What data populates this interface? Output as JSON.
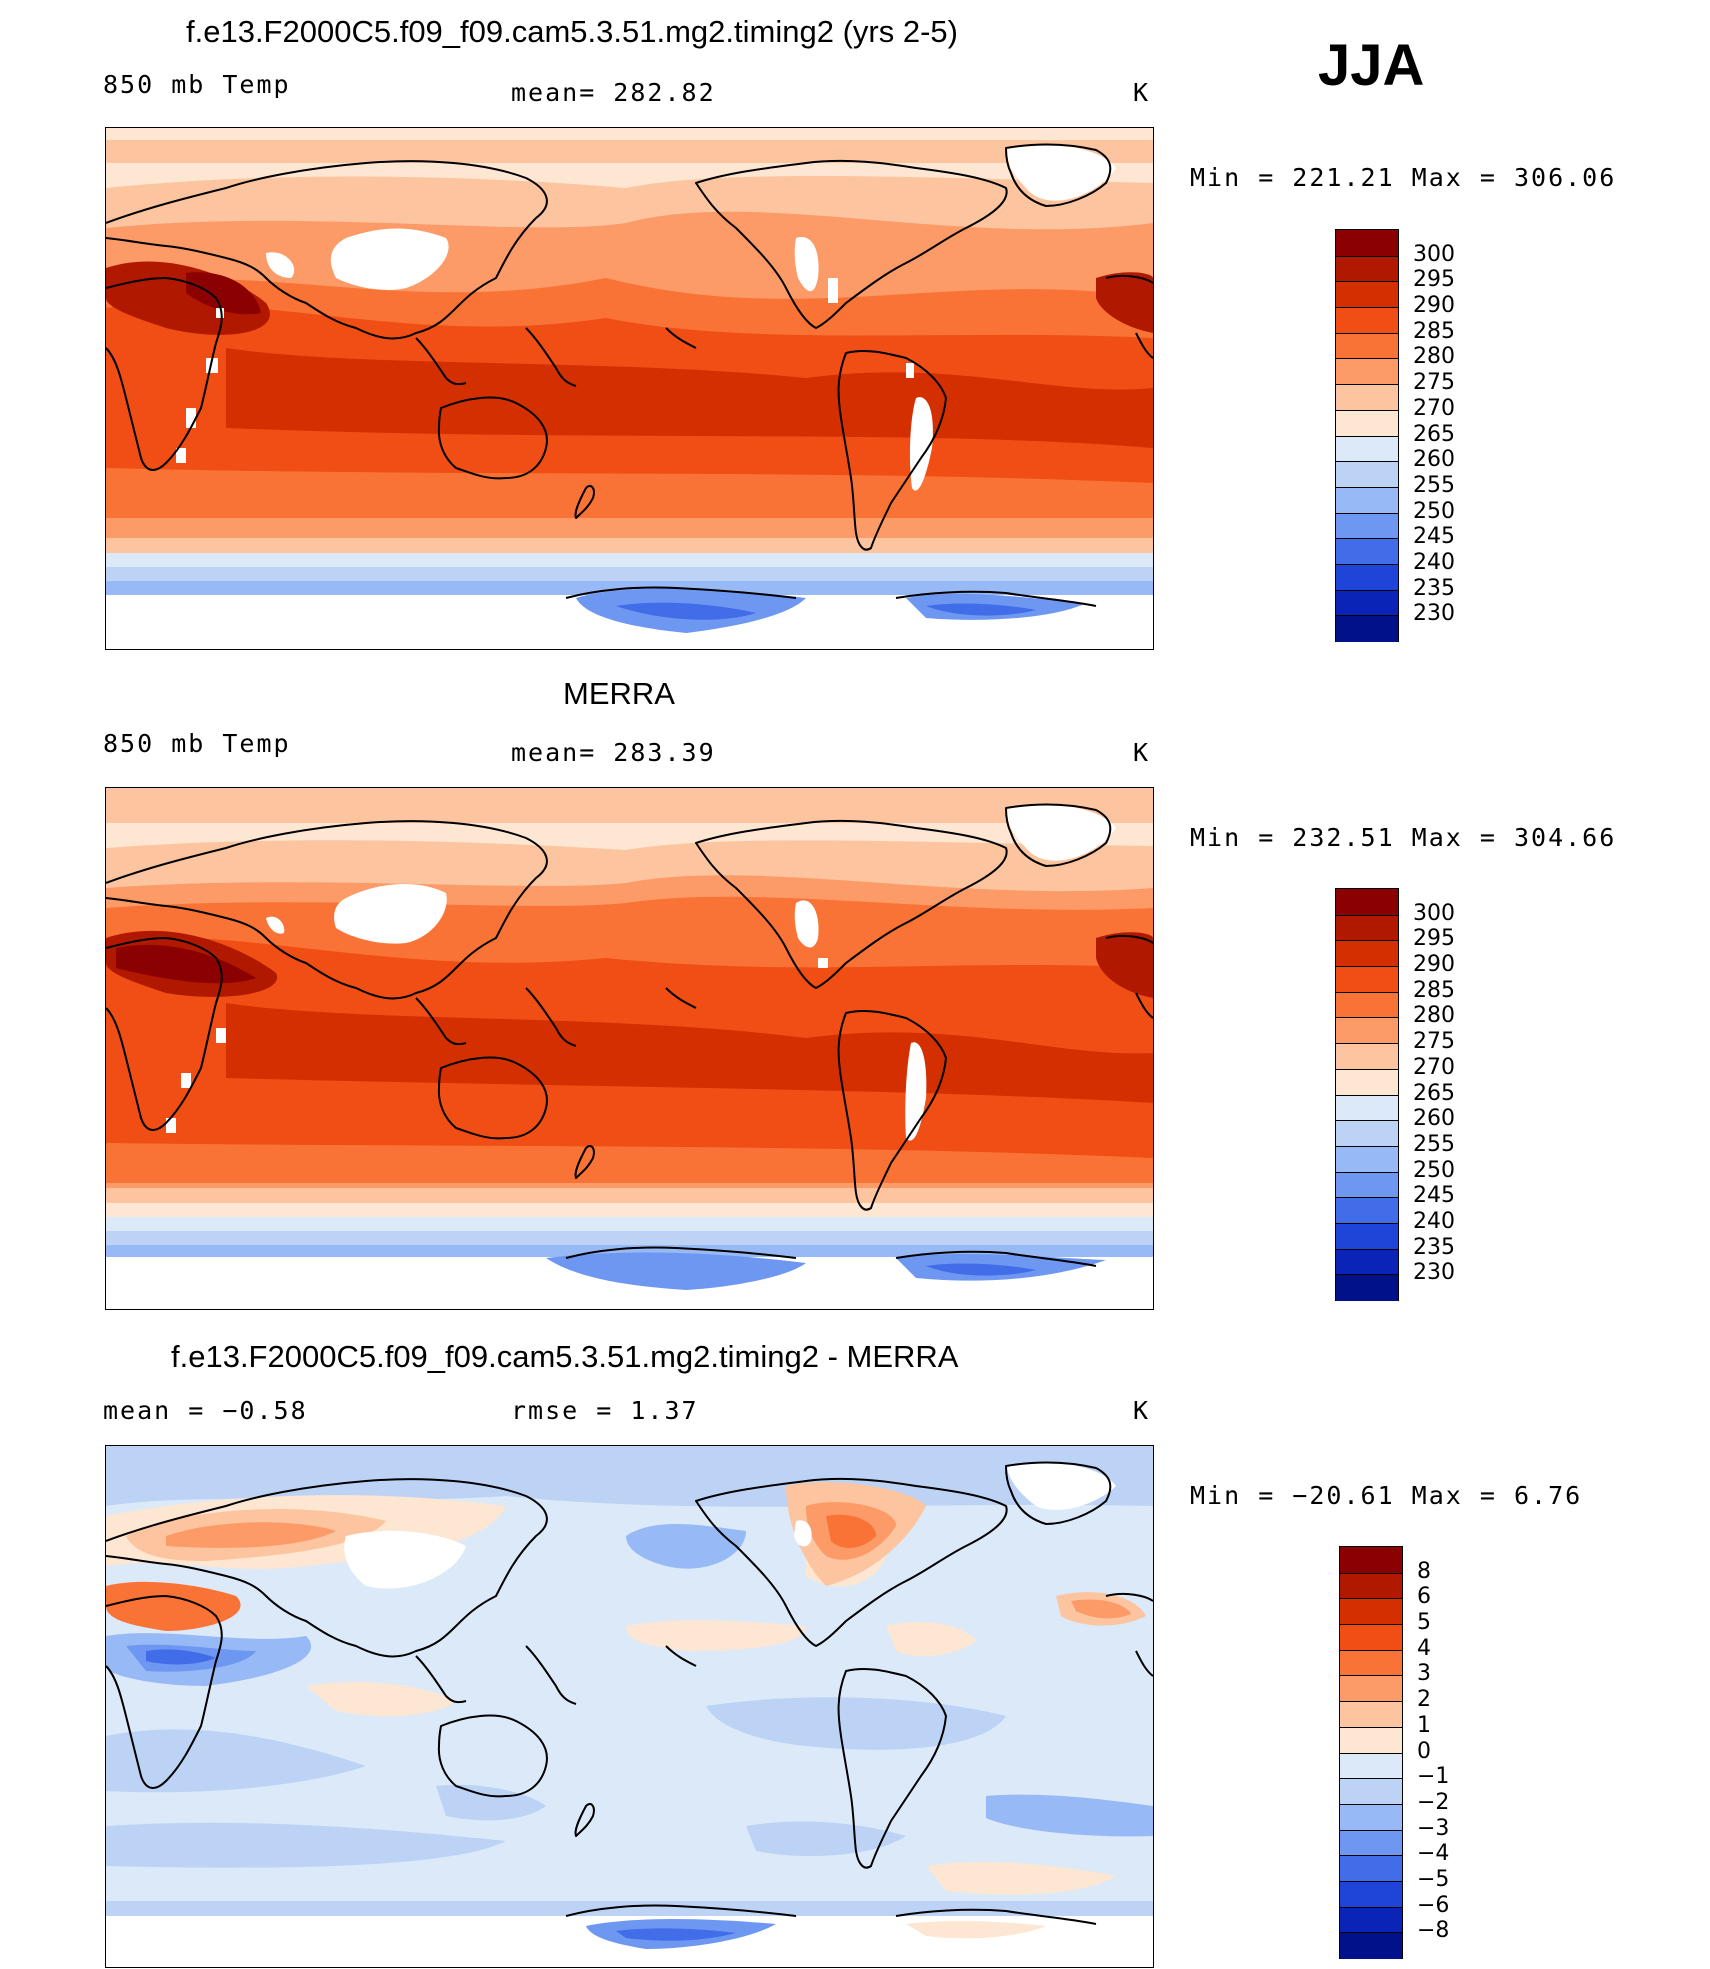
{
  "season": "JJA",
  "panels": [
    {
      "title": "f.e13.F2000C5.f09_f09.cam5.3.51.mg2.timing2 (yrs 2-5)",
      "left_label": "850 mb Temp",
      "center_label": "mean= 282.82",
      "units": "K",
      "minmax": "Min = 221.21 Max = 306.06",
      "colorbar": [
        "300",
        "295",
        "290",
        "285",
        "280",
        "275",
        "270",
        "265",
        "260",
        "255",
        "250",
        "245",
        "240",
        "235",
        "230"
      ]
    },
    {
      "title": "MERRA",
      "left_label": "850 mb Temp",
      "center_label": "mean= 283.39",
      "units": "K",
      "minmax": "Min = 232.51 Max = 304.66",
      "colorbar": [
        "300",
        "295",
        "290",
        "285",
        "280",
        "275",
        "270",
        "265",
        "260",
        "255",
        "250",
        "245",
        "240",
        "235",
        "230"
      ]
    },
    {
      "title": "f.e13.F2000C5.f09_f09.cam5.3.51.mg2.timing2 - MERRA",
      "left_label": "mean =   −0.58",
      "center_label": "rmse =    1.37",
      "units": "K",
      "minmax": "Min = −20.61 Max =    6.76",
      "colorbar": [
        "8",
        "6",
        "5",
        "4",
        "3",
        "2",
        "1",
        "0",
        "−1",
        "−2",
        "−3",
        "−4",
        "−5",
        "−6",
        "−8"
      ]
    }
  ],
  "colors": {
    "temp_scale": [
      "#8b0000",
      "#b01800",
      "#d32f00",
      "#f04e14",
      "#f97336",
      "#fc9a68",
      "#fdc4a0",
      "#fde6d2",
      "#dbe9f9",
      "#bcd3f6",
      "#97b9f5",
      "#6e97f2",
      "#416de9",
      "#1f45d8",
      "#0a24b8",
      "#00118a"
    ],
    "diff_scale": [
      "#8b0000",
      "#b01800",
      "#d32f00",
      "#f04e14",
      "#f97336",
      "#fc9a68",
      "#fdc4a0",
      "#fde6d2",
      "#dbe9f9",
      "#bcd3f6",
      "#97b9f5",
      "#6e97f2",
      "#416de9",
      "#1f45d8",
      "#0a24b8",
      "#00118a"
    ]
  },
  "map_data": {
    "projection": "cylindrical equidistant, centered 180°",
    "field": "850 mb temperature, JJA"
  }
}
